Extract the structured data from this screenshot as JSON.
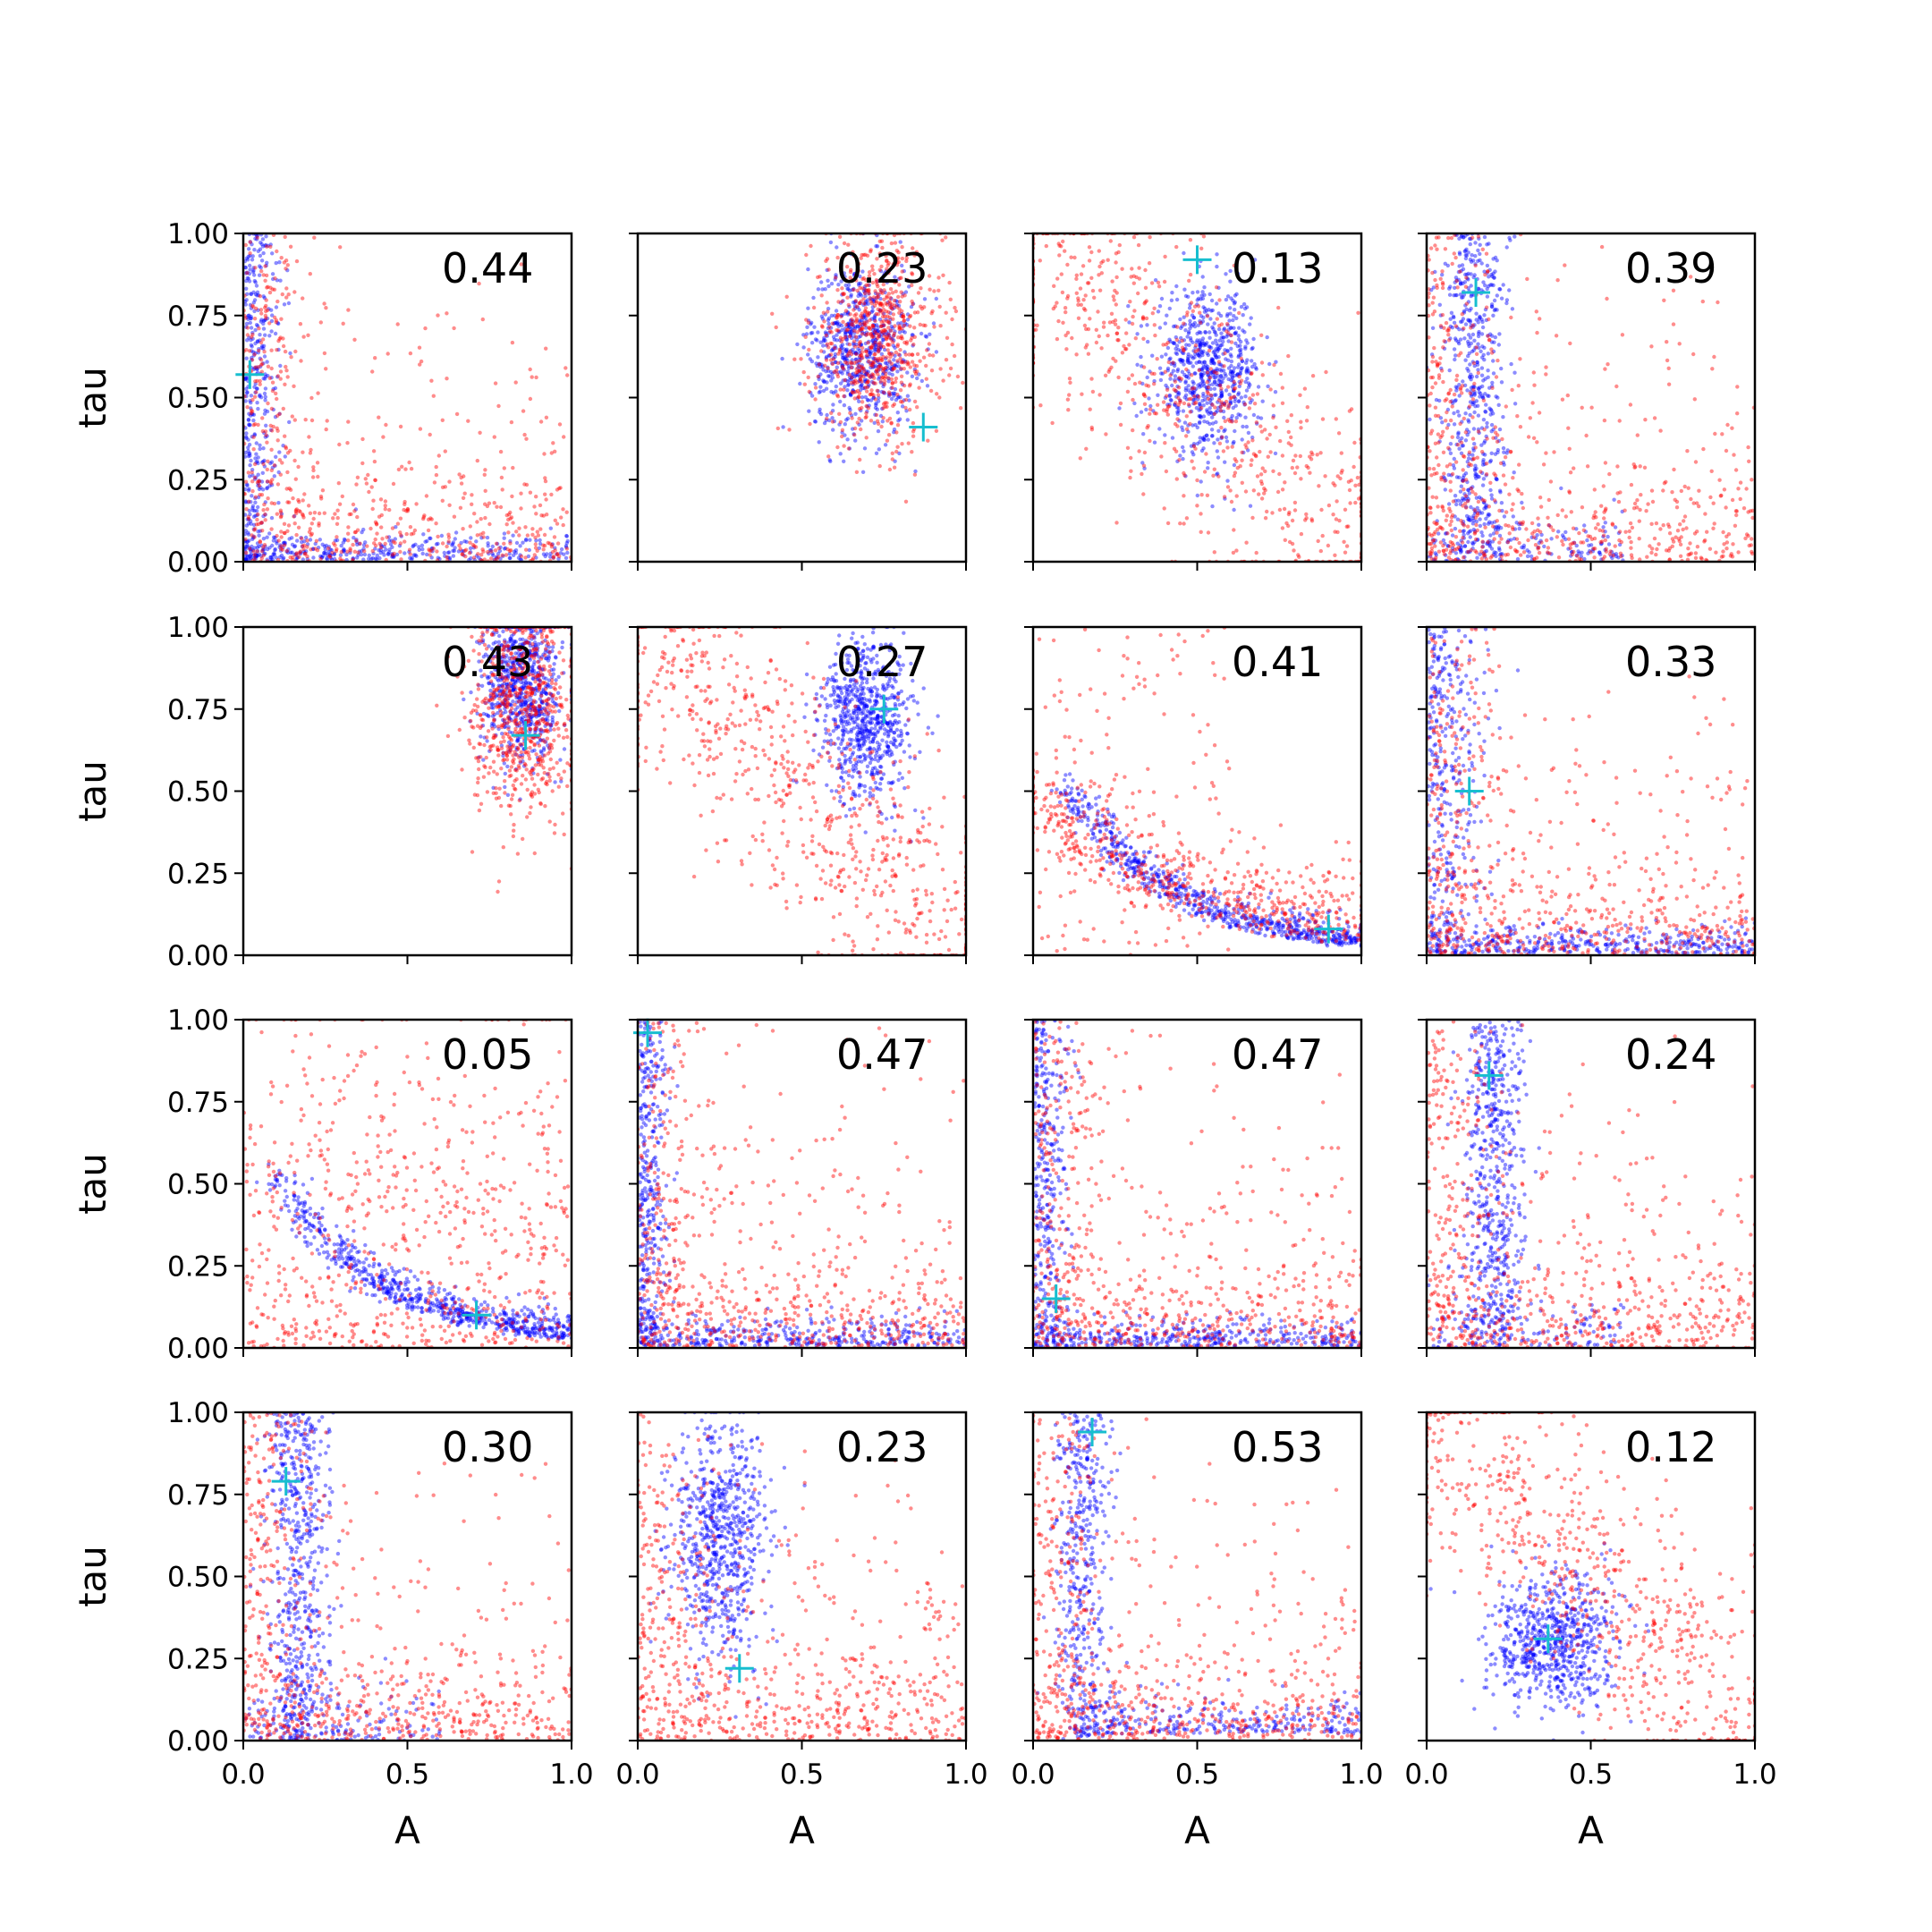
{
  "chart_data": {
    "type": "scatter",
    "layout": "4x4 grid of scatter panels",
    "xlabel": "A",
    "ylabel": "tau",
    "xlim": [
      0,
      1
    ],
    "ylim": [
      0,
      1
    ],
    "xticks": [
      "0.0",
      "0.5",
      "1.0"
    ],
    "yticks": [
      "0.00",
      "0.25",
      "0.50",
      "0.75",
      "1.00"
    ],
    "colors": {
      "series_a": "#0000ff",
      "series_b": "#ff0000",
      "marker": "#17becf"
    },
    "marker_symbol": "+",
    "grid": false,
    "legend": "none",
    "panels": [
      {
        "value": "0.44",
        "marker": [
          0.02,
          0.57
        ],
        "blue": {
          "shape": "L",
          "cx": 0.05,
          "cy": 0.05,
          "sx": 0.05,
          "sy": 0.35
        },
        "red": {
          "shape": "L-wide",
          "cx": 0.35,
          "cy": 0.15
        }
      },
      {
        "value": "0.23",
        "marker": [
          0.87,
          0.41
        ],
        "blue": {
          "shape": "blob",
          "cx": 0.68,
          "cy": 0.65,
          "sx": 0.08,
          "sy": 0.13
        },
        "red": {
          "shape": "blob",
          "cx": 0.73,
          "cy": 0.68,
          "sx": 0.1,
          "sy": 0.16
        }
      },
      {
        "value": "0.13",
        "marker": [
          0.5,
          0.92
        ],
        "blue": {
          "shape": "blob",
          "cx": 0.53,
          "cy": 0.58,
          "sx": 0.08,
          "sy": 0.12
        },
        "red": {
          "shape": "diag",
          "cx": 0.45,
          "cy": 0.55
        }
      },
      {
        "value": "0.39",
        "marker": [
          0.15,
          0.82
        ],
        "blue": {
          "shape": "Lvert",
          "cx": 0.15,
          "cy": 0.55
        },
        "red": {
          "shape": "L-wide",
          "cx": 0.3,
          "cy": 0.3
        }
      },
      {
        "value": "0.43",
        "marker": [
          0.86,
          0.67
        ],
        "blue": {
          "shape": "blob",
          "cx": 0.85,
          "cy": 0.82,
          "sx": 0.06,
          "sy": 0.12
        },
        "red": {
          "shape": "blob",
          "cx": 0.85,
          "cy": 0.75,
          "sx": 0.08,
          "sy": 0.17
        }
      },
      {
        "value": "0.27",
        "marker": [
          0.75,
          0.75
        ],
        "blue": {
          "shape": "blob",
          "cx": 0.7,
          "cy": 0.72,
          "sx": 0.07,
          "sy": 0.12
        },
        "red": {
          "shape": "diag",
          "cx": 0.78,
          "cy": 0.55
        }
      },
      {
        "value": "0.41",
        "marker": [
          0.9,
          0.08
        ],
        "blue": {
          "shape": "curve",
          "cx": 0.4,
          "cy": 0.15
        },
        "red": {
          "shape": "curve-wide",
          "cx": 0.5,
          "cy": 0.15
        }
      },
      {
        "value": "0.33",
        "marker": [
          0.13,
          0.5
        ],
        "blue": {
          "shape": "L",
          "cx": 0.1,
          "cy": 0.1,
          "sx": 0.08,
          "sy": 0.35
        },
        "red": {
          "shape": "L-wide",
          "cx": 0.35,
          "cy": 0.3
        }
      },
      {
        "value": "0.05",
        "marker": [
          0.71,
          0.1
        ],
        "blue": {
          "shape": "curve",
          "cx": 0.65,
          "cy": 0.1
        },
        "red": {
          "shape": "scatter-wide",
          "cx": 0.4,
          "cy": 0.4
        }
      },
      {
        "value": "0.47",
        "marker": [
          0.03,
          0.96
        ],
        "blue": {
          "shape": "L",
          "cx": 0.04,
          "cy": 0.05,
          "sx": 0.04,
          "sy": 0.4
        },
        "red": {
          "shape": "L-wide",
          "cx": 0.3,
          "cy": 0.25
        }
      },
      {
        "value": "0.47",
        "marker": [
          0.07,
          0.15
        ],
        "blue": {
          "shape": "L",
          "cx": 0.05,
          "cy": 0.05,
          "sx": 0.05,
          "sy": 0.4
        },
        "red": {
          "shape": "L-wide",
          "cx": 0.3,
          "cy": 0.25
        }
      },
      {
        "value": "0.24",
        "marker": [
          0.19,
          0.83
        ],
        "blue": {
          "shape": "Lvert",
          "cx": 0.2,
          "cy": 0.68
        },
        "red": {
          "shape": "L-wide",
          "cx": 0.35,
          "cy": 0.3
        }
      },
      {
        "value": "0.30",
        "marker": [
          0.13,
          0.79
        ],
        "blue": {
          "shape": "Lvert",
          "cx": 0.17,
          "cy": 0.5
        },
        "red": {
          "shape": "L-wide",
          "cx": 0.3,
          "cy": 0.35
        }
      },
      {
        "value": "0.23",
        "marker": [
          0.31,
          0.22
        ],
        "blue": {
          "shape": "blob",
          "cx": 0.25,
          "cy": 0.62,
          "sx": 0.07,
          "sy": 0.18
        },
        "red": {
          "shape": "L-wide",
          "cx": 0.4,
          "cy": 0.35
        }
      },
      {
        "value": "0.53",
        "marker": [
          0.18,
          0.94
        ],
        "blue": {
          "shape": "curve-L",
          "cx": 0.2,
          "cy": 0.3
        },
        "red": {
          "shape": "L-wide",
          "cx": 0.3,
          "cy": 0.3
        }
      },
      {
        "value": "0.12",
        "marker": [
          0.37,
          0.31
        ],
        "blue": {
          "shape": "blob",
          "cx": 0.38,
          "cy": 0.3,
          "sx": 0.1,
          "sy": 0.1
        },
        "red": {
          "shape": "diag",
          "cx": 0.35,
          "cy": 0.35
        }
      }
    ]
  }
}
